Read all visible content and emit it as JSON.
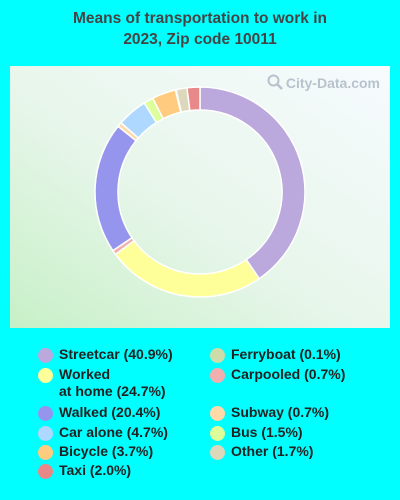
{
  "title_line1": "Means of transportation to work in",
  "title_line2": "2023, Zip code 10011",
  "watermark": "City-Data.com",
  "chart_data": {
    "type": "pie",
    "title": "Means of transportation to work in 2023, Zip code 10011",
    "slices": [
      {
        "label": "Streetcar",
        "value": 40.9,
        "color": "#BBA8DC"
      },
      {
        "label": "Worked at home",
        "value": 24.7,
        "color": "#FFFF99"
      },
      {
        "label": "Carpooled",
        "value": 0.7,
        "color": "#F2AFAF"
      },
      {
        "label": "Walked",
        "value": 20.4,
        "color": "#9595EE"
      },
      {
        "label": "Subway",
        "value": 0.7,
        "color": "#FFD9A8"
      },
      {
        "label": "Car alone",
        "value": 4.7,
        "color": "#AED8FF"
      },
      {
        "label": "Bus",
        "value": 1.5,
        "color": "#DDFF99"
      },
      {
        "label": "Bicycle",
        "value": 3.7,
        "color": "#FFCC7F"
      },
      {
        "label": "Ferryboat",
        "value": 0.1,
        "color": "#CCDDAA"
      },
      {
        "label": "Other",
        "value": 1.7,
        "color": "#DDD7BB"
      },
      {
        "label": "Taxi",
        "value": 2.0,
        "color": "#E88888"
      }
    ]
  },
  "legend": {
    "left": [
      {
        "label": "Streetcar (40.9%)",
        "color": "#BBA8DC"
      },
      {
        "label": "Worked\nat home (24.7%)",
        "color": "#FFFF99"
      },
      {
        "label": "Walked (20.4%)",
        "color": "#9595EE"
      },
      {
        "label": "Car alone (4.7%)",
        "color": "#AED8FF"
      },
      {
        "label": "Bicycle (3.7%)",
        "color": "#FFCC7F"
      },
      {
        "label": "Taxi (2.0%)",
        "color": "#E88888"
      }
    ],
    "right": [
      {
        "label": "Ferryboat (0.1%)",
        "color": "#CCDDAA"
      },
      {
        "label": "Carpooled (0.7%)",
        "color": "#F2AFAF"
      },
      {
        "label": "Subway (0.7%)",
        "color": "#FFD9A8"
      },
      {
        "label": "Bus (1.5%)",
        "color": "#DDFF99"
      },
      {
        "label": "Other (1.7%)",
        "color": "#DDD7BB"
      }
    ]
  }
}
